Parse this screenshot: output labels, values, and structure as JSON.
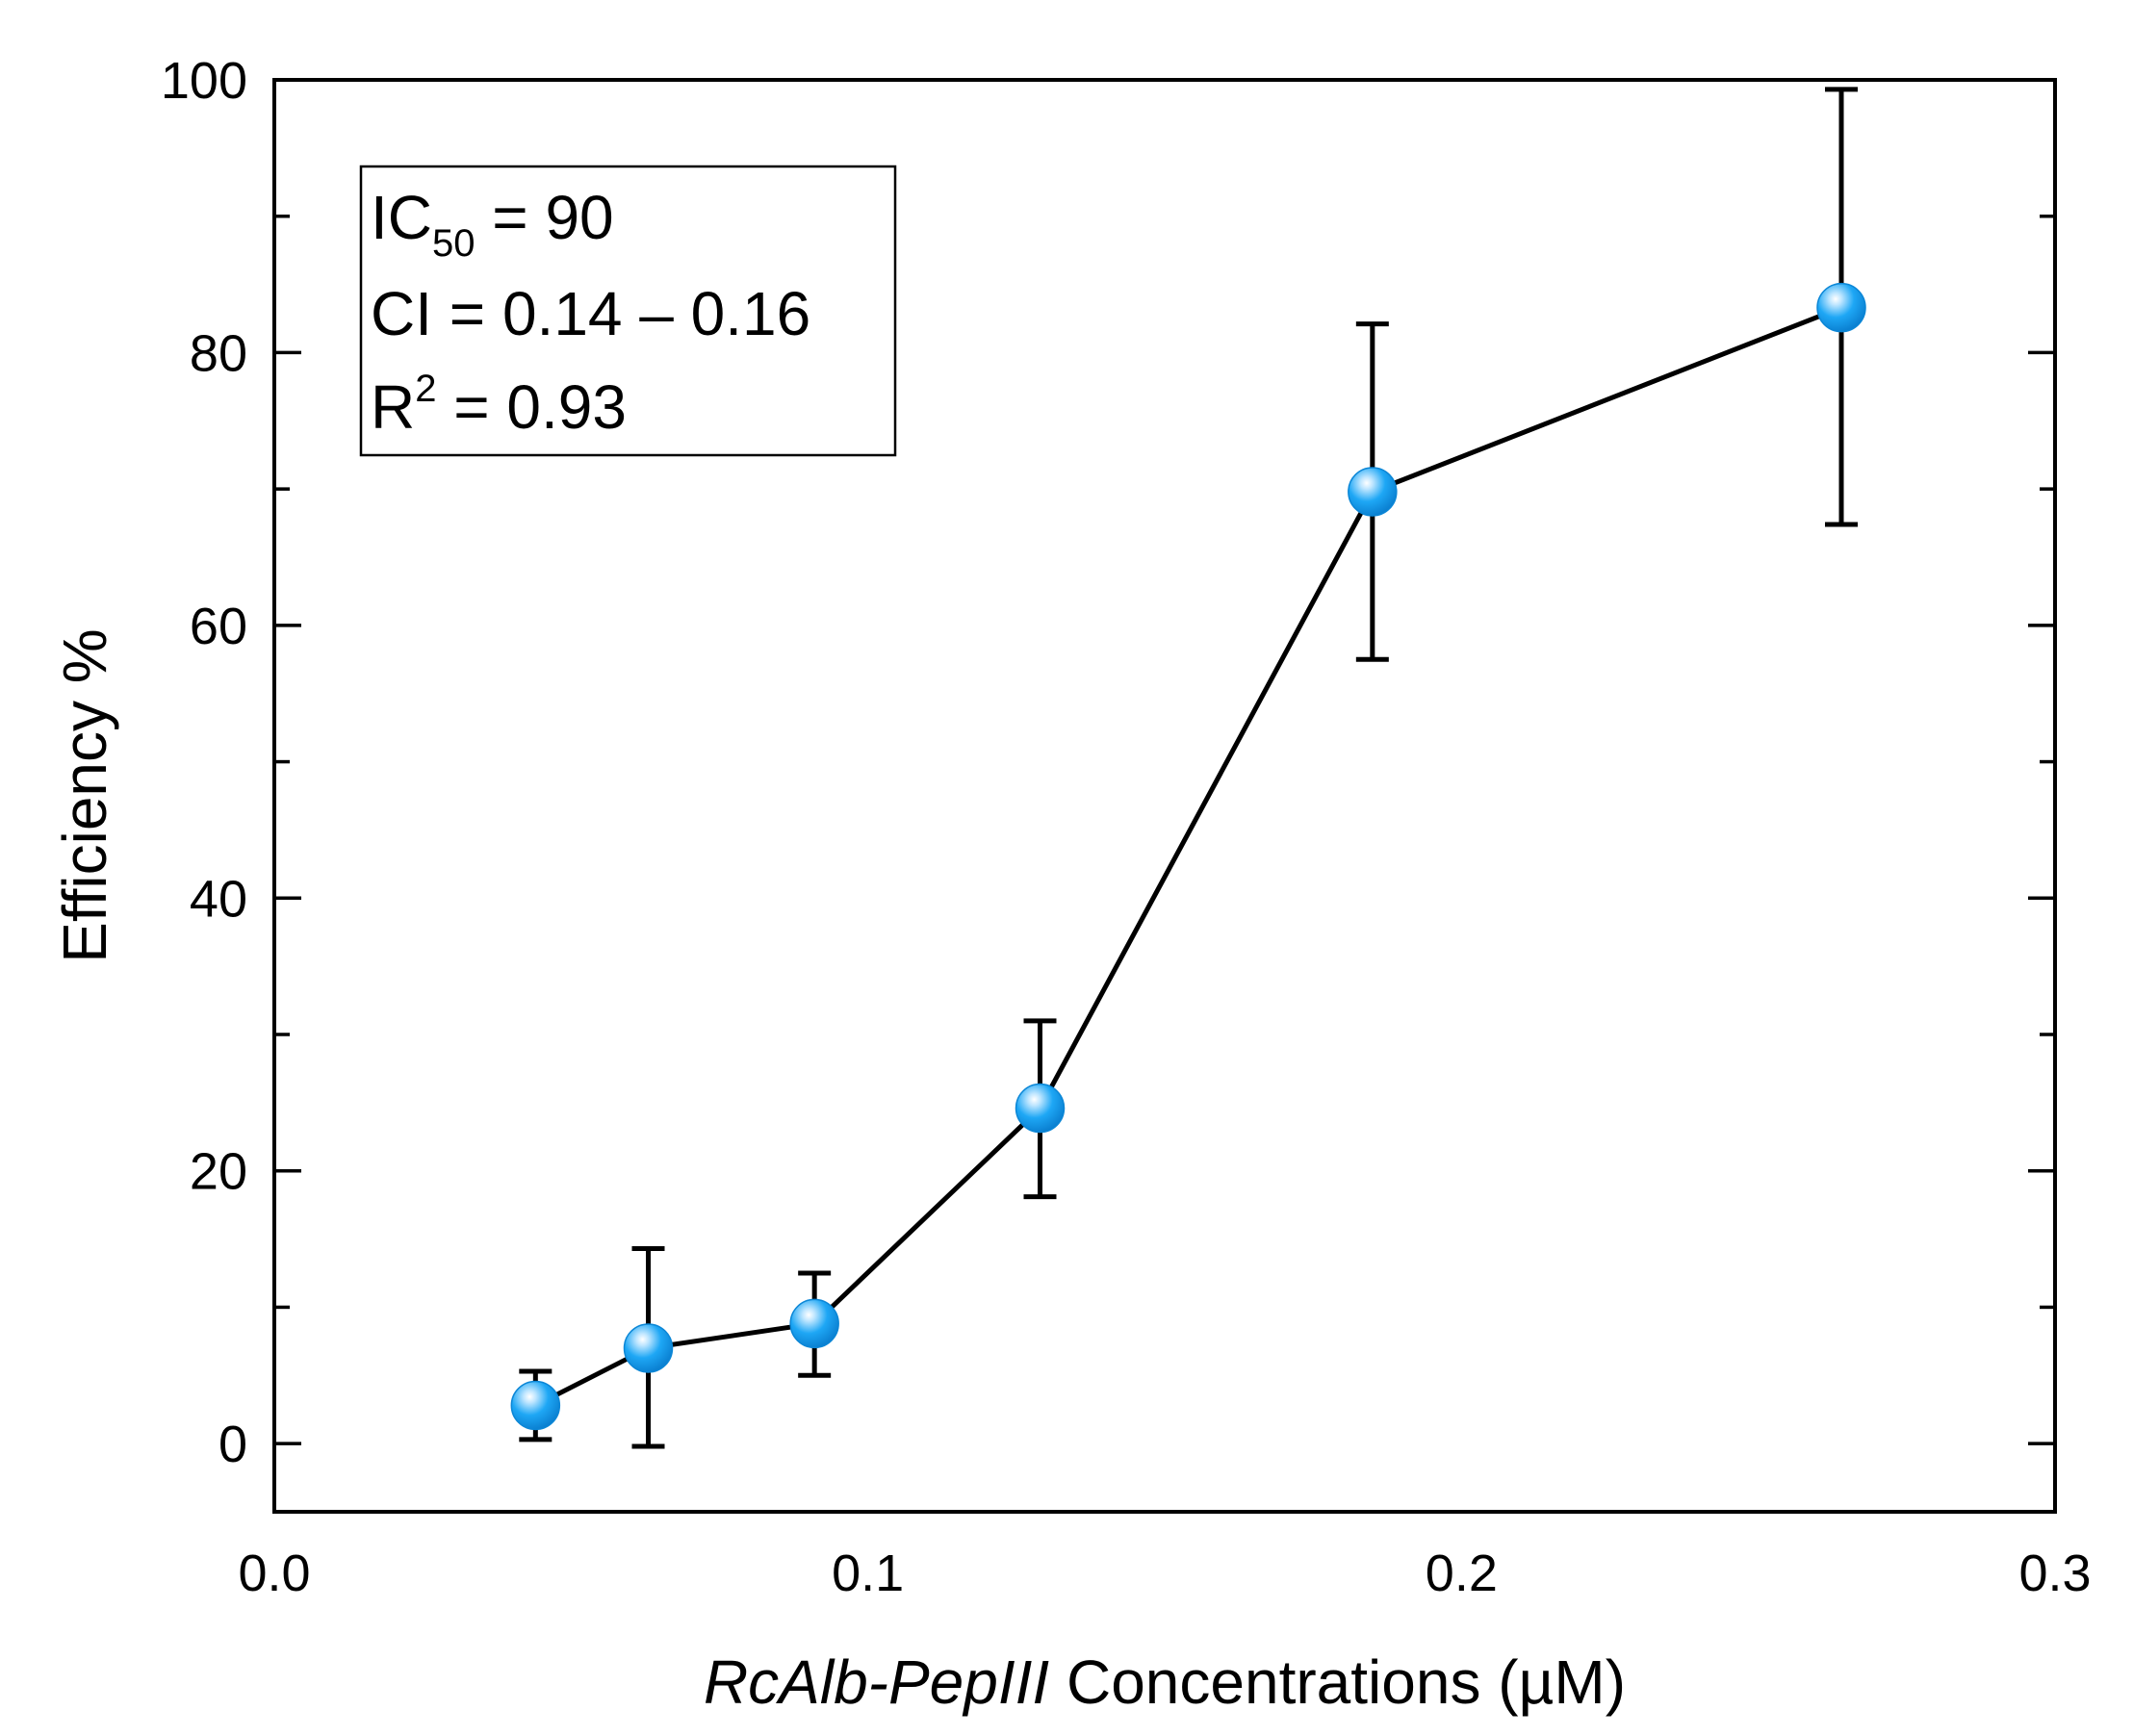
{
  "chart_data": {
    "type": "scatter",
    "title": "",
    "xlabel_italic": "RcAlb-PepIII",
    "xlabel_rest": "Concentrations (µM)",
    "ylabel": "Efficiency %",
    "xlim": [
      0.0,
      0.3
    ],
    "ylim": [
      -5,
      100
    ],
    "xticks": [
      0.0,
      0.1,
      0.2,
      0.3
    ],
    "xtick_labels": [
      "0.0",
      "0.1",
      "0.2",
      "0.3"
    ],
    "yticks": [
      0,
      20,
      40,
      60,
      80,
      100
    ],
    "ytick_labels": [
      "0",
      "20",
      "40",
      "60",
      "80",
      "100"
    ],
    "series": [
      {
        "name": "Efficiency",
        "connect_line": true,
        "marker_color": "#1ea7f5",
        "x": [
          0.044,
          0.063,
          0.091,
          0.129,
          0.185,
          0.264
        ],
        "y": [
          2.8,
          7.0,
          8.8,
          24.6,
          69.8,
          83.3
        ],
        "err_low": [
          0.3,
          -0.2,
          5.0,
          18.1,
          57.5,
          67.4
        ],
        "err_high": [
          5.3,
          14.3,
          12.5,
          31.0,
          82.1,
          99.3
        ]
      }
    ],
    "legend": {
      "placement": "top-left",
      "ic50_main": "IC",
      "ic50_sub": "50",
      "ic50_value": " = 90",
      "ci_line": "CI = 0.14 – 0.16",
      "r2_main": "R",
      "r2_sup": "2",
      "r2_value": " = 0.93"
    }
  }
}
